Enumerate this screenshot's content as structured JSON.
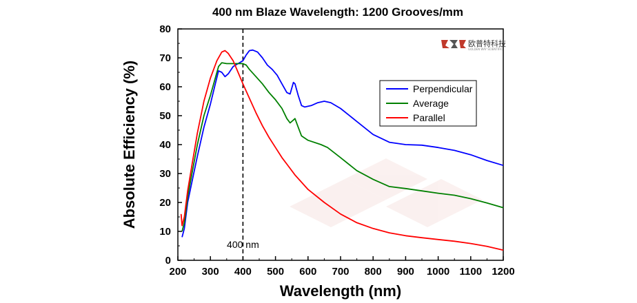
{
  "chart_data": {
    "type": "line",
    "title": "400 nm Blaze Wavelength: 1200 Grooves/mm",
    "xlabel": "Wavelength (nm)",
    "ylabel": "Absolute Efficiency (%)",
    "xlim": [
      200,
      1200
    ],
    "ylim": [
      0,
      80
    ],
    "x_ticks": [
      200,
      300,
      400,
      500,
      600,
      700,
      800,
      900,
      1000,
      1100,
      1200
    ],
    "y_ticks": [
      0,
      10,
      20,
      30,
      40,
      50,
      60,
      70,
      80
    ],
    "grid": false,
    "legend_position": "top-right",
    "annotations": [
      {
        "text": "400 nm",
        "x": 400,
        "style": "dashed vertical line"
      }
    ],
    "series": [
      {
        "name": "Perpendicular",
        "color": "#0000ff",
        "points": [
          [
            213,
            8
          ],
          [
            220,
            11
          ],
          [
            230,
            20
          ],
          [
            245,
            28
          ],
          [
            260,
            36
          ],
          [
            280,
            46
          ],
          [
            300,
            54
          ],
          [
            315,
            61
          ],
          [
            325,
            65.5
          ],
          [
            335,
            65
          ],
          [
            345,
            63.5
          ],
          [
            355,
            64.5
          ],
          [
            370,
            67
          ],
          [
            385,
            68
          ],
          [
            400,
            69
          ],
          [
            410,
            71
          ],
          [
            420,
            72.5
          ],
          [
            430,
            72.7
          ],
          [
            445,
            72
          ],
          [
            460,
            70
          ],
          [
            475,
            67.5
          ],
          [
            490,
            66
          ],
          [
            505,
            64
          ],
          [
            520,
            61
          ],
          [
            535,
            58
          ],
          [
            545,
            57.5
          ],
          [
            555,
            61.5
          ],
          [
            560,
            61
          ],
          [
            570,
            57
          ],
          [
            580,
            53.5
          ],
          [
            590,
            53
          ],
          [
            610,
            53.5
          ],
          [
            630,
            54.5
          ],
          [
            650,
            55
          ],
          [
            670,
            54.5
          ],
          [
            700,
            52.5
          ],
          [
            750,
            48
          ],
          [
            800,
            43.5
          ],
          [
            850,
            40.8
          ],
          [
            900,
            40
          ],
          [
            950,
            39.8
          ],
          [
            1000,
            39
          ],
          [
            1050,
            38
          ],
          [
            1100,
            36.5
          ],
          [
            1150,
            34.5
          ],
          [
            1200,
            32.8
          ]
        ]
      },
      {
        "name": "Average",
        "color": "#008000",
        "points": [
          [
            213,
            10
          ],
          [
            220,
            13
          ],
          [
            230,
            22
          ],
          [
            245,
            31
          ],
          [
            260,
            40
          ],
          [
            280,
            50
          ],
          [
            300,
            57
          ],
          [
            315,
            63
          ],
          [
            325,
            67
          ],
          [
            335,
            68.3
          ],
          [
            350,
            68
          ],
          [
            365,
            68
          ],
          [
            380,
            68
          ],
          [
            400,
            68
          ],
          [
            410,
            67.5
          ],
          [
            420,
            66
          ],
          [
            440,
            63.5
          ],
          [
            460,
            61
          ],
          [
            480,
            58
          ],
          [
            500,
            55.5
          ],
          [
            520,
            52.5
          ],
          [
            535,
            49
          ],
          [
            545,
            47.5
          ],
          [
            555,
            48.5
          ],
          [
            560,
            49
          ],
          [
            570,
            46
          ],
          [
            580,
            43
          ],
          [
            600,
            41.5
          ],
          [
            640,
            40
          ],
          [
            660,
            39
          ],
          [
            700,
            35.5
          ],
          [
            750,
            31
          ],
          [
            800,
            28
          ],
          [
            850,
            25.5
          ],
          [
            900,
            24.8
          ],
          [
            950,
            24
          ],
          [
            1000,
            23.2
          ],
          [
            1050,
            22.5
          ],
          [
            1100,
            21.3
          ],
          [
            1150,
            19.8
          ],
          [
            1200,
            18.2
          ]
        ]
      },
      {
        "name": "Parallel",
        "color": "#ff0000",
        "points": [
          [
            210,
            16
          ],
          [
            213,
            12
          ],
          [
            220,
            15
          ],
          [
            230,
            24
          ],
          [
            245,
            34
          ],
          [
            260,
            44
          ],
          [
            280,
            55
          ],
          [
            300,
            63
          ],
          [
            320,
            69
          ],
          [
            335,
            72
          ],
          [
            345,
            72.5
          ],
          [
            355,
            71.5
          ],
          [
            370,
            69
          ],
          [
            385,
            65
          ],
          [
            400,
            61
          ],
          [
            420,
            56
          ],
          [
            440,
            51
          ],
          [
            460,
            46.5
          ],
          [
            480,
            42.5
          ],
          [
            500,
            39
          ],
          [
            520,
            35.5
          ],
          [
            540,
            32.5
          ],
          [
            560,
            29.5
          ],
          [
            580,
            27
          ],
          [
            600,
            24.5
          ],
          [
            650,
            20
          ],
          [
            700,
            16
          ],
          [
            750,
            13
          ],
          [
            800,
            11
          ],
          [
            850,
            9.5
          ],
          [
            900,
            8.5
          ],
          [
            950,
            7.8
          ],
          [
            1000,
            7.2
          ],
          [
            1050,
            6.6
          ],
          [
            1100,
            5.8
          ],
          [
            1150,
            4.8
          ],
          [
            1200,
            3.5
          ]
        ]
      }
    ]
  },
  "logo": {
    "cn_text": "欧普特科技",
    "en_text": "GOLDEN WAY SCIENTIFIC",
    "accent": "#c0392b"
  }
}
